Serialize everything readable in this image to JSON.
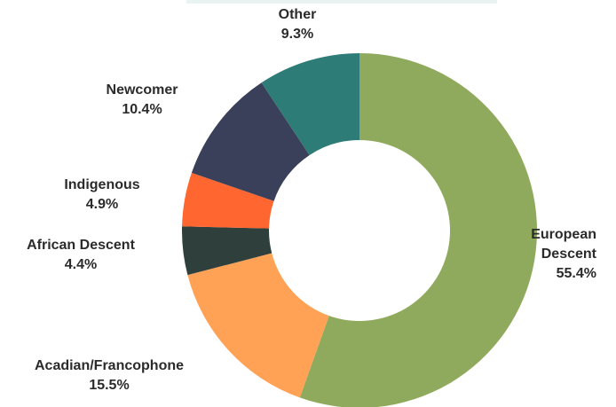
{
  "chart_data": {
    "type": "pie",
    "donut": true,
    "title": "",
    "slices": [
      {
        "label": "European Descent",
        "label_lines": [
          "European",
          "Descent"
        ],
        "value": 55.4,
        "value_text": "55.4%",
        "color": "#8faa5c"
      },
      {
        "label": "Acadian/Francophone",
        "label_lines": [
          "Acadian/Francophone"
        ],
        "value": 15.5,
        "value_text": "15.5%",
        "color": "#ffa255"
      },
      {
        "label": "African Descent",
        "label_lines": [
          "African Descent"
        ],
        "value": 4.4,
        "value_text": "4.4%",
        "color": "#2e3f3c"
      },
      {
        "label": "Indigenous",
        "label_lines": [
          "Indigenous"
        ],
        "value": 4.9,
        "value_text": "4.9%",
        "color": "#ff6630"
      },
      {
        "label": "Newcomer",
        "label_lines": [
          "Newcomer"
        ],
        "value": 10.4,
        "value_text": "10.4%",
        "color": "#3a3f5a"
      },
      {
        "label": "Other",
        "label_lines": [
          "Other"
        ],
        "value": 9.3,
        "value_text": "9.3%",
        "color": "#2e7c78"
      }
    ]
  }
}
